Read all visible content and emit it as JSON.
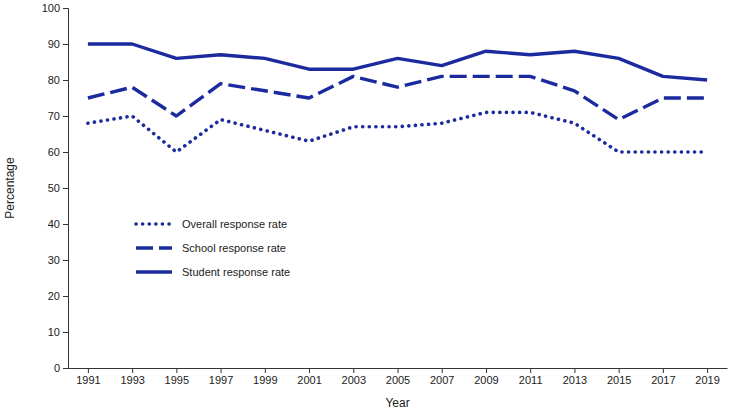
{
  "chart_data": {
    "type": "line",
    "x_label": "Year",
    "y_label": "Percentage",
    "categories": [
      "1991",
      "1993",
      "1995",
      "1997",
      "1999",
      "2001",
      "2003",
      "2005",
      "2007",
      "2009",
      "2011",
      "2013",
      "2015",
      "2017",
      "2019"
    ],
    "series": [
      {
        "name": "Overall response rate",
        "color": "#1b2a9e",
        "line_style": "dotted",
        "values": [
          68,
          70,
          60,
          69,
          66,
          63,
          67,
          67,
          68,
          71,
          71,
          68,
          60,
          60,
          60
        ]
      },
      {
        "name": "School response rate",
        "color": "#1b2a9e",
        "line_style": "dashed",
        "values": [
          75,
          78,
          70,
          79,
          77,
          75,
          81,
          78,
          81,
          81,
          81,
          77,
          69,
          75,
          75
        ]
      },
      {
        "name": "Student response rate",
        "color": "#1b2a9e",
        "line_style": "solid",
        "values": [
          90,
          90,
          86,
          87,
          86,
          83,
          83,
          86,
          84,
          88,
          87,
          88,
          86,
          81,
          80
        ]
      }
    ],
    "ylim": [
      0,
      100
    ],
    "yticks": [
      0,
      10,
      20,
      30,
      40,
      50,
      60,
      70,
      80,
      90,
      100
    ],
    "legend": "left",
    "grid": false
  }
}
